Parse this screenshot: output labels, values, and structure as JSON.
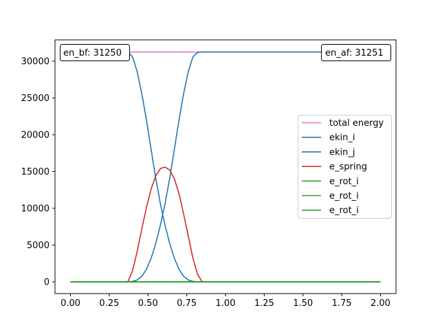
{
  "chart_data": {
    "type": "line",
    "title": "",
    "xlabel": "",
    "ylabel": "",
    "xlim": [
      -0.1,
      2.1
    ],
    "ylim": [
      -1600,
      32900
    ],
    "xticks": [
      0.0,
      0.25,
      0.5,
      0.75,
      1.0,
      1.25,
      1.5,
      1.75,
      2.0
    ],
    "xtick_labels": [
      "0.00",
      "0.25",
      "0.50",
      "0.75",
      "1.00",
      "1.25",
      "1.50",
      "1.75",
      "2.00"
    ],
    "yticks": [
      0,
      5000,
      10000,
      15000,
      20000,
      25000,
      30000
    ],
    "ytick_labels": [
      "0",
      "5000",
      "10000",
      "15000",
      "20000",
      "25000",
      "30000"
    ],
    "grid": false,
    "legend_position": "center-right",
    "series": [
      {
        "name": "total energy",
        "color": "#e377c2",
        "x": [
          0.0,
          2.0
        ],
        "values": [
          31250,
          31251
        ]
      },
      {
        "name": "ekin_i",
        "color": "#1f77b4",
        "x": [
          0.0,
          0.37,
          0.4,
          0.43,
          0.46,
          0.49,
          0.52,
          0.55,
          0.58,
          0.61,
          0.64,
          0.67,
          0.7,
          0.73,
          0.76,
          0.79,
          0.82,
          0.85,
          2.0
        ],
        "values": [
          31250,
          31250,
          30600,
          28600,
          25600,
          22000,
          18000,
          14100,
          10600,
          7700,
          5200,
          3200,
          1700,
          750,
          250,
          60,
          0,
          0,
          0
        ]
      },
      {
        "name": "ekin_j",
        "color": "#1f77b4",
        "x": [
          0.0,
          0.37,
          0.4,
          0.43,
          0.46,
          0.49,
          0.52,
          0.55,
          0.58,
          0.61,
          0.64,
          0.67,
          0.7,
          0.73,
          0.76,
          0.79,
          0.82,
          0.85,
          2.0
        ],
        "values": [
          0,
          0,
          60,
          250,
          750,
          1700,
          3200,
          5200,
          7700,
          10600,
          14100,
          18000,
          22000,
          25600,
          28600,
          30600,
          31200,
          31251,
          31251
        ]
      },
      {
        "name": "e_spring",
        "color": "#d62728",
        "x": [
          0.0,
          0.37,
          0.4,
          0.43,
          0.46,
          0.49,
          0.52,
          0.55,
          0.58,
          0.61,
          0.64,
          0.67,
          0.7,
          0.73,
          0.76,
          0.79,
          0.82,
          0.85,
          2.0
        ],
        "values": [
          0,
          0,
          1500,
          4100,
          7200,
          10100,
          12600,
          14400,
          15400,
          15600,
          15200,
          14000,
          12000,
          9200,
          6200,
          3200,
          1000,
          0,
          0
        ]
      },
      {
        "name": "e_rot_i",
        "color": "#2ca02c",
        "x": [
          0.0,
          2.0
        ],
        "values": [
          0,
          0
        ]
      },
      {
        "name": "e_rot_i",
        "color": "#2ca02c",
        "x": [
          0.0,
          2.0
        ],
        "values": [
          0,
          0
        ]
      },
      {
        "name": "e_rot_i",
        "color": "#2ca02c",
        "x": [
          0.0,
          2.0
        ],
        "values": [
          0,
          0
        ]
      }
    ],
    "annotations": [
      {
        "name": "en-bf-annotation",
        "text": "en_bf: 31250",
        "position": "top-left"
      },
      {
        "name": "en-af-annotation",
        "text": "en_af: 31251",
        "position": "top-right"
      }
    ]
  }
}
